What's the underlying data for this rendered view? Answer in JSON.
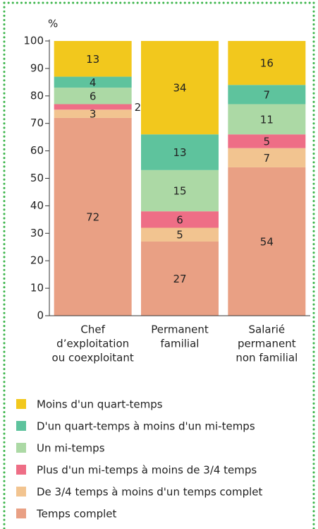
{
  "chart_data": {
    "type": "stacked_bar",
    "y_label": "%",
    "categories": [
      [
        "Chef",
        "d’exploitation",
        "ou coexploitant"
      ],
      [
        "Permanent",
        "familial"
      ],
      [
        "Salarié",
        "permanent",
        "non familial"
      ]
    ],
    "series": [
      {
        "name": "Temps complet",
        "color": "#e9a084",
        "values": [
          72,
          27,
          54
        ]
      },
      {
        "name": "De 3/4 temps à moins d'un temps complet",
        "color": "#f2c490",
        "values": [
          3,
          5,
          7
        ]
      },
      {
        "name": "Plus d'un mi-temps à moins de 3/4 temps",
        "color": "#ee6e86",
        "values": [
          2,
          6,
          5
        ]
      },
      {
        "name": "Un mi-temps",
        "color": "#acd9a5",
        "values": [
          6,
          15,
          11
        ]
      },
      {
        "name": "D'un quart-temps à moins d'un mi-temps",
        "color": "#5ec39d",
        "values": [
          4,
          13,
          7
        ]
      },
      {
        "name": "Moins d'un quart-temps",
        "color": "#f2c81d",
        "values": [
          13,
          34,
          16
        ]
      }
    ],
    "ylim": [
      0,
      100
    ],
    "yticks": [
      0,
      10,
      20,
      30,
      40,
      50,
      60,
      70,
      80,
      90,
      100
    ]
  }
}
